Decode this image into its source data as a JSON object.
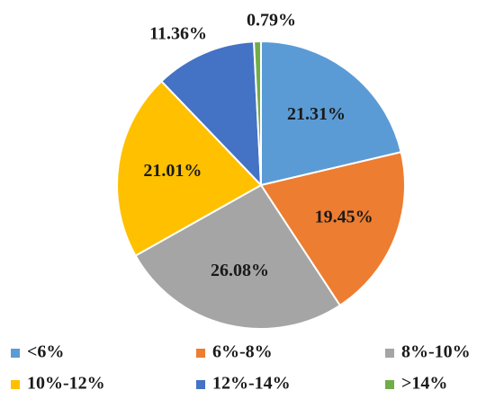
{
  "chart_data": {
    "type": "pie",
    "categories": [
      "<6%",
      "6%-8%",
      "8%-10%",
      "10%-12%",
      "12%-14%",
      ">14%"
    ],
    "values": [
      21.31,
      19.45,
      26.08,
      21.01,
      11.36,
      0.79
    ],
    "value_labels": [
      "21.31%",
      "19.45%",
      "26.08%",
      "21.01%",
      "11.36%",
      "0.79%"
    ],
    "colors": [
      "#5b9bd5",
      "#ed7d31",
      "#a5a5a5",
      "#ffc000",
      "#4472c4",
      "#70ad47"
    ],
    "legend": "bottom"
  }
}
